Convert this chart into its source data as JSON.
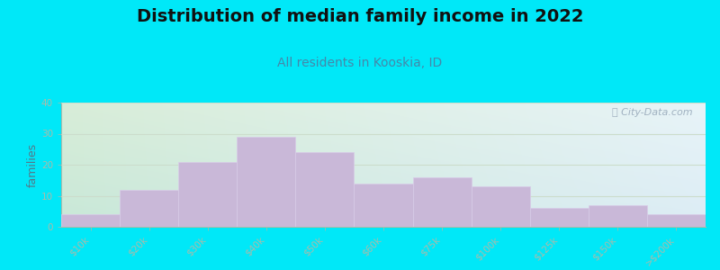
{
  "title": "Distribution of median family income in 2022",
  "subtitle": "All residents in Kooskia, ID",
  "ylabel": "families",
  "categories": [
    "$10k",
    "$20k",
    "$30k",
    "$40k",
    "$50k",
    "$60k",
    "$75k",
    "$100k",
    "$125k",
    "$150k",
    ">$200k"
  ],
  "values": [
    4,
    12,
    21,
    29,
    24,
    14,
    16,
    13,
    6,
    7,
    4
  ],
  "bar_color": "#c9b8d8",
  "bar_edgecolor": "#d8cce8",
  "ylim": [
    0,
    40
  ],
  "yticks": [
    0,
    10,
    20,
    30,
    40
  ],
  "background_outer": "#00e8f8",
  "bg_top_left": "#d8edd8",
  "bg_top_right": "#e8f0f8",
  "bg_bottom_left": "#c8e8d8",
  "bg_bottom_right": "#dce8f5",
  "title_fontsize": 14,
  "subtitle_fontsize": 10,
  "subtitle_color": "#4488aa",
  "ylabel_fontsize": 9,
  "tick_label_fontsize": 7.5,
  "tick_label_color": "#557788",
  "watermark_text": "ⓘ City-Data.com",
  "watermark_color": "#99aabb",
  "grid_color": "#ccddcc",
  "spine_color": "#aabbaa"
}
